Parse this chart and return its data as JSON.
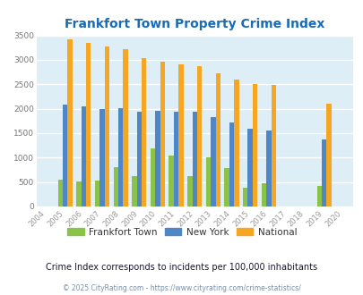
{
  "title": "Frankfort Town Property Crime Index",
  "years": [
    2004,
    2005,
    2006,
    2007,
    2008,
    2009,
    2010,
    2011,
    2012,
    2013,
    2014,
    2015,
    2016,
    2017,
    2018,
    2019,
    2020
  ],
  "frankfort": [
    0,
    550,
    510,
    530,
    800,
    620,
    1180,
    1050,
    620,
    1010,
    780,
    380,
    480,
    0,
    0,
    420,
    0
  ],
  "new_york": [
    0,
    2080,
    2040,
    2000,
    2020,
    1940,
    1950,
    1930,
    1930,
    1820,
    1710,
    1600,
    1560,
    0,
    0,
    1370,
    0
  ],
  "national": [
    0,
    3420,
    3340,
    3270,
    3210,
    3040,
    2960,
    2910,
    2870,
    2730,
    2600,
    2510,
    2480,
    0,
    0,
    2110,
    0
  ],
  "frankfort_color": "#8bc34a",
  "new_york_color": "#4f86c6",
  "national_color": "#f5a623",
  "bg_color": "#ddeef6",
  "grid_color": "#ffffff",
  "title_color": "#1a6bb5",
  "ylabel_max": 3500,
  "yticks": [
    0,
    500,
    1000,
    1500,
    2000,
    2500,
    3000,
    3500
  ],
  "subtitle": "Crime Index corresponds to incidents per 100,000 inhabitants",
  "copyright": "© 2025 CityRating.com - https://www.cityrating.com/crime-statistics/",
  "legend_labels": [
    "Frankfort Town",
    "New York",
    "National"
  ],
  "legend_label_color": "#333333",
  "subtitle_color": "#1a1a2e",
  "copyright_color": "#7a8fa6"
}
